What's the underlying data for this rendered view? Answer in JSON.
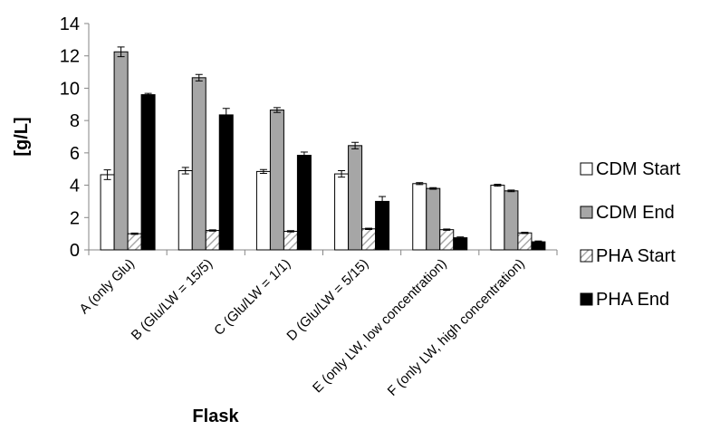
{
  "chart_data": {
    "type": "bar",
    "title": "",
    "xlabel": "Flask",
    "ylabel": "[g/L]",
    "ylim": [
      0,
      14
    ],
    "yticks": [
      0,
      2,
      4,
      6,
      8,
      10,
      12,
      14
    ],
    "grid": false,
    "legend_position": "right",
    "categories": [
      "A (only Glu)",
      "B (Glu/LW = 15/5)",
      "C (Glu/LW = 1/1)",
      "D (Glu/LW = 5/15)",
      "E (only LW, low concentration)",
      "F (only LW, high concentration)"
    ],
    "series": [
      {
        "name": "CDM Start",
        "fill": "white",
        "values": [
          4.65,
          4.9,
          4.85,
          4.7,
          4.1,
          4.0
        ],
        "errors": [
          0.3,
          0.2,
          0.12,
          0.2,
          0.06,
          0.06
        ]
      },
      {
        "name": "CDM End",
        "fill": "gray",
        "values": [
          12.25,
          10.65,
          8.65,
          6.45,
          3.8,
          3.65
        ],
        "errors": [
          0.3,
          0.2,
          0.15,
          0.2,
          0.05,
          0.05
        ]
      },
      {
        "name": "PHA Start",
        "fill": "hatch",
        "values": [
          1.0,
          1.2,
          1.15,
          1.3,
          1.25,
          1.05
        ],
        "errors": [
          0.04,
          0.04,
          0.04,
          0.04,
          0.04,
          0.04
        ]
      },
      {
        "name": "PHA End",
        "fill": "black",
        "values": [
          9.6,
          8.35,
          5.85,
          3.0,
          0.75,
          0.5
        ],
        "errors": [
          0.08,
          0.4,
          0.2,
          0.3,
          0.05,
          0.05
        ]
      }
    ]
  }
}
